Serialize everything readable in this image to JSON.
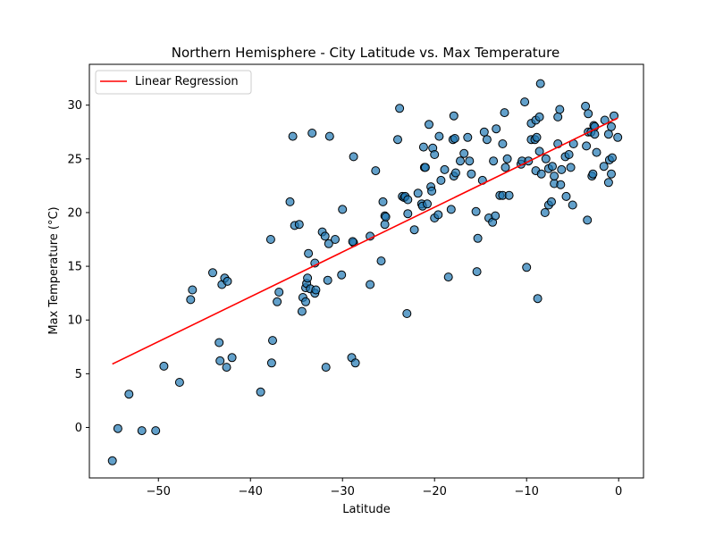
{
  "chart_data": {
    "type": "scatter",
    "title": "Northern Hemisphere - City Latitude vs. Max Temperature",
    "xlabel": "Latitude",
    "ylabel": "Max Temperature (°C)",
    "xlim": [
      -57.5,
      2.7
    ],
    "ylim": [
      -4.7,
      33.8
    ],
    "xticks": [
      -50,
      -40,
      -30,
      -20,
      -10,
      0
    ],
    "yticks": [
      0,
      5,
      10,
      15,
      20,
      25,
      30
    ],
    "grid": false,
    "legend": {
      "placement": "top-left",
      "entries": [
        "Linear Regression"
      ]
    },
    "colors": {
      "marker_fill": "#1f77b4",
      "marker_edge": "#000000",
      "regression_line": "#ff0000"
    },
    "series": [
      {
        "type": "scatter",
        "points": [
          [
            -55.0,
            -3.1
          ],
          [
            -54.4,
            -0.1
          ],
          [
            -53.2,
            3.1
          ],
          [
            -51.8,
            -0.3
          ],
          [
            -50.3,
            -0.3
          ],
          [
            -49.4,
            5.7
          ],
          [
            -47.7,
            4.2
          ],
          [
            -46.5,
            11.9
          ],
          [
            -46.3,
            12.8
          ],
          [
            -44.1,
            14.4
          ],
          [
            -43.4,
            7.9
          ],
          [
            -43.3,
            6.2
          ],
          [
            -43.1,
            13.3
          ],
          [
            -42.8,
            13.9
          ],
          [
            -42.6,
            5.6
          ],
          [
            -42.5,
            13.6
          ],
          [
            -42.0,
            6.5
          ],
          [
            -38.9,
            3.3
          ],
          [
            -37.8,
            17.5
          ],
          [
            -37.6,
            8.1
          ],
          [
            -37.7,
            6.0
          ],
          [
            -37.1,
            11.7
          ],
          [
            -36.9,
            12.6
          ],
          [
            -35.7,
            21.0
          ],
          [
            -35.4,
            27.1
          ],
          [
            -35.2,
            18.8
          ],
          [
            -34.7,
            18.9
          ],
          [
            -34.4,
            10.8
          ],
          [
            -34.3,
            12.1
          ],
          [
            -34.0,
            11.7
          ],
          [
            -34.0,
            13.0
          ],
          [
            -33.9,
            13.4
          ],
          [
            -33.8,
            13.9
          ],
          [
            -33.7,
            16.2
          ],
          [
            -33.5,
            12.9
          ],
          [
            -33.3,
            27.4
          ],
          [
            -33.0,
            15.3
          ],
          [
            -33.0,
            12.5
          ],
          [
            -32.9,
            12.8
          ],
          [
            -32.2,
            18.2
          ],
          [
            -31.9,
            17.8
          ],
          [
            -31.8,
            5.6
          ],
          [
            -31.6,
            13.7
          ],
          [
            -31.5,
            17.1
          ],
          [
            -31.4,
            27.1
          ],
          [
            -30.8,
            17.5
          ],
          [
            -30.0,
            20.3
          ],
          [
            -30.1,
            14.2
          ],
          [
            -29.0,
            6.5
          ],
          [
            -28.8,
            17.2
          ],
          [
            -28.8,
            25.2
          ],
          [
            -28.9,
            17.3
          ],
          [
            -28.6,
            6.0
          ],
          [
            -27.0,
            13.3
          ],
          [
            -27.0,
            17.8
          ],
          [
            -26.4,
            23.9
          ],
          [
            -25.8,
            15.5
          ],
          [
            -25.6,
            21.0
          ],
          [
            -25.4,
            19.7
          ],
          [
            -25.4,
            18.9
          ],
          [
            -25.3,
            19.6
          ],
          [
            -24.0,
            26.8
          ],
          [
            -23.8,
            29.7
          ],
          [
            -23.5,
            21.5
          ],
          [
            -23.3,
            21.4
          ],
          [
            -23.2,
            21.5
          ],
          [
            -23.0,
            10.6
          ],
          [
            -22.9,
            19.9
          ],
          [
            -22.9,
            21.2
          ],
          [
            -22.2,
            18.4
          ],
          [
            -21.8,
            21.8
          ],
          [
            -21.4,
            20.8
          ],
          [
            -21.3,
            20.6
          ],
          [
            -21.2,
            26.1
          ],
          [
            -21.1,
            24.2
          ],
          [
            -21.0,
            24.2
          ],
          [
            -20.6,
            28.2
          ],
          [
            -20.8,
            20.8
          ],
          [
            -20.4,
            22.4
          ],
          [
            -20.3,
            22.0
          ],
          [
            -20.2,
            26.0
          ],
          [
            -20.0,
            25.4
          ],
          [
            -20.0,
            19.5
          ],
          [
            -19.5,
            27.1
          ],
          [
            -19.6,
            19.8
          ],
          [
            -19.3,
            23.0
          ],
          [
            -18.9,
            24.0
          ],
          [
            -18.5,
            14.0
          ],
          [
            -18.2,
            20.3
          ],
          [
            -18.0,
            26.8
          ],
          [
            -17.9,
            23.4
          ],
          [
            -17.9,
            29.0
          ],
          [
            -17.8,
            26.9
          ],
          [
            -17.7,
            23.7
          ],
          [
            -17.2,
            24.8
          ],
          [
            -16.8,
            25.5
          ],
          [
            -16.4,
            27.0
          ],
          [
            -16.2,
            24.8
          ],
          [
            -16.0,
            23.6
          ],
          [
            -15.5,
            20.1
          ],
          [
            -15.4,
            14.5
          ],
          [
            -15.3,
            17.6
          ],
          [
            -14.8,
            23.0
          ],
          [
            -14.6,
            27.5
          ],
          [
            -14.3,
            26.8
          ],
          [
            -14.1,
            19.5
          ],
          [
            -13.7,
            19.1
          ],
          [
            -13.6,
            24.8
          ],
          [
            -13.4,
            19.7
          ],
          [
            -13.3,
            27.8
          ],
          [
            -12.9,
            21.6
          ],
          [
            -12.6,
            26.4
          ],
          [
            -12.4,
            29.3
          ],
          [
            -12.6,
            21.6
          ],
          [
            -12.3,
            24.2
          ],
          [
            -12.1,
            25.0
          ],
          [
            -11.9,
            21.6
          ],
          [
            -10.6,
            24.5
          ],
          [
            -10.5,
            24.8
          ],
          [
            -10.2,
            30.3
          ],
          [
            -10.0,
            14.9
          ],
          [
            -9.8,
            24.8
          ],
          [
            -9.5,
            28.3
          ],
          [
            -9.5,
            26.8
          ],
          [
            -9.1,
            26.8
          ],
          [
            -9.0,
            28.6
          ],
          [
            -9.0,
            23.9
          ],
          [
            -8.9,
            27.0
          ],
          [
            -8.8,
            12.0
          ],
          [
            -8.6,
            25.7
          ],
          [
            -8.6,
            28.9
          ],
          [
            -8.5,
            32.0
          ],
          [
            -8.4,
            23.6
          ],
          [
            -8.0,
            20.0
          ],
          [
            -7.9,
            25.0
          ],
          [
            -7.6,
            24.1
          ],
          [
            -7.6,
            20.7
          ],
          [
            -7.3,
            21.0
          ],
          [
            -7.2,
            24.3
          ],
          [
            -7.0,
            22.7
          ],
          [
            -7.0,
            23.4
          ],
          [
            -6.6,
            26.4
          ],
          [
            -6.6,
            28.9
          ],
          [
            -6.4,
            29.6
          ],
          [
            -6.3,
            22.6
          ],
          [
            -6.2,
            24.0
          ],
          [
            -5.8,
            25.2
          ],
          [
            -5.7,
            21.5
          ],
          [
            -5.4,
            25.4
          ],
          [
            -5.2,
            24.2
          ],
          [
            -5.0,
            20.7
          ],
          [
            -4.9,
            26.4
          ],
          [
            -3.6,
            29.9
          ],
          [
            -3.5,
            26.2
          ],
          [
            -3.4,
            19.3
          ],
          [
            -3.3,
            27.5
          ],
          [
            -3.3,
            29.2
          ],
          [
            -3.0,
            27.5
          ],
          [
            -2.9,
            23.4
          ],
          [
            -2.8,
            23.6
          ],
          [
            -2.7,
            28.1
          ],
          [
            -2.6,
            28.0
          ],
          [
            -2.6,
            27.3
          ],
          [
            -2.4,
            25.6
          ],
          [
            -1.6,
            24.3
          ],
          [
            -1.5,
            28.6
          ],
          [
            -1.1,
            27.3
          ],
          [
            -1.1,
            22.8
          ],
          [
            -1.0,
            24.9
          ],
          [
            -0.8,
            23.6
          ],
          [
            -0.8,
            28.0
          ],
          [
            -0.7,
            25.1
          ],
          [
            -0.5,
            29.0
          ],
          [
            -0.1,
            27.0
          ]
        ]
      },
      {
        "name": "Linear Regression",
        "type": "line",
        "x": [
          -55.0,
          -0.1
        ],
        "y": [
          5.9,
          28.8
        ]
      }
    ]
  }
}
